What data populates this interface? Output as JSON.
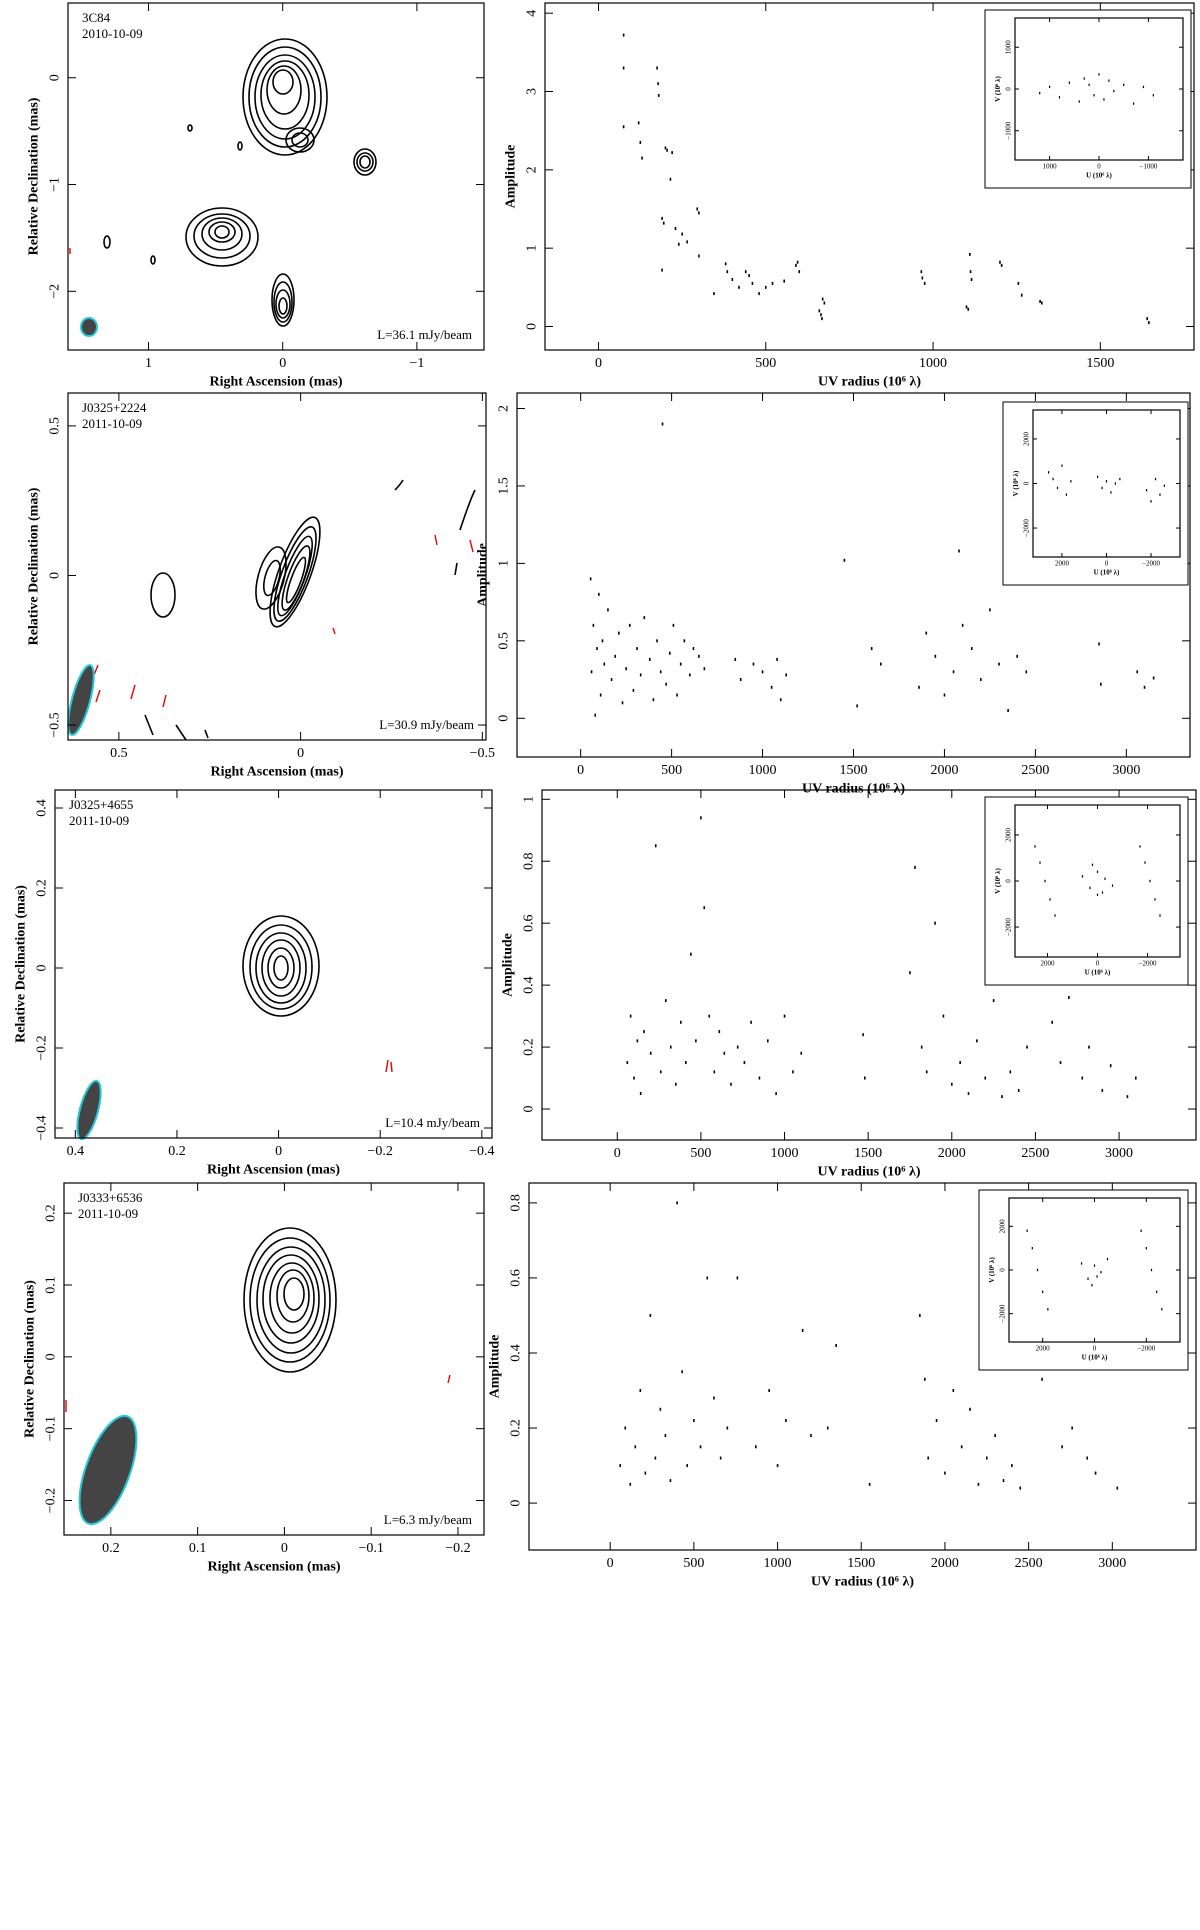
{
  "chart_data": [
    {
      "type": "contour",
      "title": "3C84",
      "subtitle": "2010-10-09",
      "annotation": "L=36.1 mJy/beam",
      "xlabel": "Right Ascension (mas)",
      "ylabel": "Relative Declination (mas)",
      "xlim": [
        1.6,
        -1.5
      ],
      "ylim": [
        -2.55,
        0.7
      ],
      "xticks": [
        1,
        0,
        {
          "value": -1,
          "label": "−1"
        }
      ],
      "yticks": [
        0,
        {
          "value": -1,
          "label": "−1"
        },
        {
          "value": -2,
          "label": "−2"
        }
      ]
    },
    {
      "type": "scatter",
      "xlabel": "UV radius (10⁶ λ)",
      "ylabel": "Amplitude",
      "xlim": [
        -160,
        1780
      ],
      "ylim": [
        -0.3,
        4.13
      ],
      "xticks": [
        0,
        500,
        1000,
        1500
      ],
      "yticks": [
        0,
        1,
        2,
        3,
        4
      ],
      "x": [
        75,
        75,
        75,
        120,
        125,
        130,
        175,
        178,
        180,
        200,
        205,
        220,
        215,
        190,
        195,
        190,
        230,
        240,
        250,
        265,
        295,
        300,
        300,
        345,
        380,
        385,
        400,
        420,
        440,
        450,
        460,
        480,
        500,
        520,
        555,
        590,
        595,
        600,
        660,
        665,
        668,
        670,
        675,
        965,
        968,
        975,
        1100,
        1105,
        1110,
        1112,
        1115,
        1200,
        1205,
        1255,
        1265,
        1320,
        1325,
        1640,
        1645
      ],
      "y": [
        3.72,
        3.3,
        2.55,
        2.6,
        2.35,
        2.15,
        3.3,
        3.1,
        2.95,
        2.28,
        2.25,
        2.22,
        1.88,
        1.38,
        1.32,
        0.72,
        1.25,
        1.05,
        1.18,
        1.08,
        1.5,
        1.45,
        0.9,
        0.42,
        0.8,
        0.7,
        0.6,
        0.5,
        0.7,
        0.65,
        0.55,
        0.42,
        0.5,
        0.55,
        0.58,
        0.78,
        0.82,
        0.7,
        0.2,
        0.15,
        0.1,
        0.35,
        0.3,
        0.7,
        0.62,
        0.55,
        0.25,
        0.22,
        0.92,
        0.7,
        0.6,
        0.82,
        0.78,
        0.55,
        0.4,
        0.32,
        0.3,
        0.1,
        0.05
      ],
      "inset": {
        "xlabel": "U (10⁶ λ)",
        "ylabel": "V (10⁶ λ)",
        "xlim": [
          1700,
          -1700
        ],
        "ylim": [
          -1700,
          1700
        ],
        "xticks": [
          1000,
          0,
          {
            "value": -1000,
            "label": "−1000"
          }
        ],
        "yticks": [
          1000,
          0,
          {
            "value": -1000,
            "label": "−1000"
          }
        ],
        "x": [
          1200,
          1000,
          800,
          600,
          400,
          300,
          200,
          100,
          0,
          -100,
          -200,
          -300,
          -500,
          -700,
          -900,
          -1100
        ],
        "y": [
          -100,
          50,
          -200,
          150,
          -300,
          250,
          100,
          -150,
          350,
          -250,
          200,
          -50,
          100,
          -350,
          50,
          -150
        ]
      }
    },
    {
      "type": "contour",
      "title": "J0325+2224",
      "subtitle": "2011-10-09",
      "annotation": "L=30.9 mJy/beam",
      "xlabel": "Right Ascension (mas)",
      "ylabel": "Relative Declination (mas)",
      "xlim": [
        0.64,
        -0.51
      ],
      "ylim": [
        -0.55,
        0.61
      ],
      "xticks": [
        0.5,
        0,
        {
          "value": -0.5,
          "label": "−0.5"
        }
      ],
      "yticks": [
        0.5,
        0,
        {
          "value": -0.5,
          "label": "−0.5"
        }
      ]
    },
    {
      "type": "scatter",
      "xlabel": "UV radius (10⁶ λ)",
      "ylabel": "Amplitude",
      "xlim": [
        -350,
        3350
      ],
      "ylim": [
        -0.25,
        2.1
      ],
      "xticks": [
        0,
        500,
        1000,
        1500,
        2000,
        2500,
        3000
      ],
      "yticks": [
        0,
        0.5,
        1,
        1.5,
        2
      ],
      "x": [
        55,
        60,
        70,
        80,
        90,
        100,
        110,
        120,
        130,
        150,
        170,
        190,
        210,
        230,
        250,
        270,
        290,
        310,
        330,
        350,
        380,
        400,
        420,
        440,
        450,
        470,
        490,
        510,
        530,
        550,
        570,
        600,
        620,
        650,
        680,
        850,
        880,
        950,
        1000,
        1050,
        1080,
        1100,
        1130,
        1450,
        1520,
        1600,
        1650,
        1860,
        1900,
        1950,
        2000,
        2050,
        2080,
        2100,
        2150,
        2200,
        2250,
        2300,
        2350,
        2400,
        2450,
        2850,
        2860,
        3060,
        3100,
        3150
      ],
      "y": [
        0.9,
        0.3,
        0.6,
        0.02,
        0.45,
        0.8,
        0.15,
        0.5,
        0.35,
        0.7,
        0.25,
        0.4,
        0.55,
        0.1,
        0.32,
        0.6,
        0.18,
        0.45,
        0.28,
        0.65,
        0.38,
        0.12,
        0.5,
        0.3,
        1.9,
        0.22,
        0.42,
        0.6,
        0.15,
        0.35,
        0.5,
        0.28,
        0.45,
        0.4,
        0.32,
        0.38,
        0.25,
        0.35,
        0.3,
        0.2,
        0.38,
        0.12,
        0.28,
        1.02,
        0.08,
        0.45,
        0.35,
        0.2,
        0.55,
        0.4,
        0.15,
        0.3,
        1.08,
        0.6,
        0.45,
        0.25,
        0.7,
        0.35,
        0.05,
        0.4,
        0.3,
        0.48,
        0.22,
        0.3,
        0.2,
        0.26
      ],
      "inset": {
        "xlabel": "U (10⁶ λ)",
        "ylabel": "V (10⁶ λ)",
        "xlim": [
          3300,
          -3300
        ],
        "ylim": [
          -3300,
          3300
        ],
        "xticks": [
          2000,
          0,
          {
            "value": -2000,
            "label": "−2000"
          }
        ],
        "yticks": [
          2000,
          0,
          {
            "value": -2000,
            "label": "−2000"
          }
        ],
        "x": [
          2600,
          2400,
          2200,
          2000,
          1800,
          1600,
          400,
          200,
          0,
          -200,
          -400,
          -600,
          -1800,
          -2000,
          -2200,
          -2400,
          -2600
        ],
        "y": [
          500,
          200,
          -200,
          800,
          -500,
          100,
          300,
          -200,
          100,
          -400,
          0,
          200,
          -300,
          -800,
          200,
          -500,
          -100
        ]
      }
    },
    {
      "type": "contour",
      "title": "J0325+4655",
      "subtitle": "2011-10-09",
      "annotation": "L=10.4 mJy/beam",
      "xlabel": "Right Ascension (mas)",
      "ylabel": "Relative Declination (mas)",
      "xlim": [
        0.44,
        -0.42
      ],
      "ylim": [
        -0.425,
        0.445
      ],
      "xticks": [
        0.4,
        0.2,
        0,
        {
          "value": -0.2,
          "label": "−0.2"
        },
        {
          "value": -0.4,
          "label": "−0.4"
        }
      ],
      "yticks": [
        0.4,
        0.2,
        0,
        {
          "value": -0.2,
          "label": "−0.2"
        },
        {
          "value": -0.4,
          "label": "−0.4"
        }
      ]
    },
    {
      "type": "scatter",
      "xlabel": "UV radius (10⁶ λ)",
      "ylabel": "Amplitude",
      "xlim": [
        -450,
        3460
      ],
      "ylim": [
        -0.1,
        1.03
      ],
      "xticks": [
        0,
        500,
        1000,
        1500,
        2000,
        2500,
        3000
      ],
      "yticks": [
        0,
        0.2,
        0.4,
        0.6,
        0.8,
        1
      ],
      "x": [
        60,
        80,
        100,
        120,
        140,
        160,
        200,
        230,
        260,
        290,
        320,
        350,
        380,
        410,
        440,
        470,
        500,
        520,
        550,
        580,
        610,
        640,
        680,
        720,
        760,
        800,
        850,
        900,
        950,
        1000,
        1050,
        1100,
        1470,
        1480,
        1750,
        1780,
        1820,
        1850,
        1900,
        1950,
        2000,
        2050,
        2100,
        2150,
        2200,
        2250,
        2300,
        2350,
        2400,
        2450,
        2600,
        2650,
        2700,
        2780,
        2820,
        2900,
        2950,
        3050,
        3100
      ],
      "y": [
        0.15,
        0.3,
        0.1,
        0.22,
        0.05,
        0.25,
        0.18,
        0.85,
        0.12,
        0.35,
        0.2,
        0.08,
        0.28,
        0.15,
        0.5,
        0.22,
        0.94,
        0.65,
        0.3,
        0.12,
        0.25,
        0.18,
        0.08,
        0.2,
        0.15,
        0.28,
        0.1,
        0.22,
        0.05,
        0.3,
        0.12,
        0.18,
        0.24,
        0.1,
        0.44,
        0.78,
        0.2,
        0.12,
        0.6,
        0.3,
        0.08,
        0.15,
        0.05,
        0.22,
        0.1,
        0.35,
        0.04,
        0.12,
        0.06,
        0.2,
        0.28,
        0.15,
        0.36,
        0.1,
        0.2,
        0.06,
        0.14,
        0.04,
        0.1
      ],
      "inset": {
        "xlabel": "U (10⁶ λ)",
        "ylabel": "V (10⁶ λ)",
        "xlim": [
          3300,
          -3300
        ],
        "ylim": [
          -3300,
          3300
        ],
        "xticks": [
          2000,
          0,
          {
            "value": -2000,
            "label": "−2000"
          }
        ],
        "yticks": [
          2000,
          0,
          {
            "value": -2000,
            "label": "−2000"
          }
        ],
        "x": [
          2500,
          2300,
          2100,
          1900,
          1700,
          600,
          300,
          0,
          -300,
          -600,
          0,
          200,
          -200,
          -1700,
          -1900,
          -2100,
          -2300,
          -2500
        ],
        "y": [
          1500,
          800,
          0,
          -800,
          -1500,
          200,
          -300,
          400,
          100,
          -200,
          -600,
          700,
          -500,
          1500,
          800,
          0,
          -800,
          -1500
        ]
      }
    },
    {
      "type": "contour",
      "title": "J0333+6536",
      "subtitle": "2011-10-09",
      "annotation": "L=6.3 mJy/beam",
      "xlabel": "Right Ascension (mas)",
      "ylabel": "Relative Declination (mas)",
      "xlim": [
        0.254,
        -0.23
      ],
      "ylim": [
        -0.248,
        0.242
      ],
      "xticks": [
        0.2,
        0.1,
        0,
        {
          "value": -0.1,
          "label": "−0.1"
        },
        {
          "value": -0.2,
          "label": "−0.2"
        }
      ],
      "yticks": [
        0.2,
        0.1,
        0,
        {
          "value": -0.1,
          "label": "−0.1"
        },
        {
          "value": -0.2,
          "label": "−0.2"
        }
      ]
    },
    {
      "type": "scatter",
      "xlabel": "UV radius (10⁶ λ)",
      "ylabel": "Amplitude",
      "xlim": [
        -485,
        3500
      ],
      "ylim": [
        -0.125,
        0.853
      ],
      "xticks": [
        0,
        500,
        1000,
        1500,
        2000,
        2500,
        3000
      ],
      "yticks": [
        0,
        0.2,
        0.4,
        0.6,
        0.8
      ],
      "x": [
        60,
        90,
        120,
        150,
        180,
        210,
        240,
        270,
        300,
        330,
        360,
        400,
        430,
        460,
        500,
        540,
        580,
        620,
        660,
        700,
        760,
        870,
        950,
        1000,
        1050,
        1150,
        1200,
        1300,
        1350,
        1550,
        1850,
        1880,
        1900,
        1950,
        2000,
        2050,
        2100,
        2150,
        2200,
        2250,
        2300,
        2350,
        2400,
        2450,
        2580,
        2600,
        2700,
        2760,
        2850,
        2900,
        3030
      ],
      "y": [
        0.1,
        0.2,
        0.05,
        0.15,
        0.3,
        0.08,
        0.5,
        0.12,
        0.25,
        0.18,
        0.06,
        0.8,
        0.35,
        0.1,
        0.22,
        0.15,
        0.6,
        0.28,
        0.12,
        0.2,
        0.6,
        0.15,
        0.3,
        0.1,
        0.22,
        0.46,
        0.18,
        0.2,
        0.42,
        0.05,
        0.5,
        0.33,
        0.12,
        0.22,
        0.08,
        0.3,
        0.15,
        0.25,
        0.05,
        0.12,
        0.18,
        0.06,
        0.1,
        0.04,
        0.33,
        0.38,
        0.15,
        0.2,
        0.12,
        0.08,
        0.04
      ],
      "inset": {
        "xlabel": "U (10⁶ λ)",
        "ylabel": "V (10⁶ λ)",
        "xlim": [
          3300,
          -3300
        ],
        "ylim": [
          -3300,
          3300
        ],
        "xticks": [
          2000,
          0,
          {
            "value": -2000,
            "label": "−2000"
          }
        ],
        "yticks": [
          2000,
          0,
          {
            "value": -2000,
            "label": "−2000"
          }
        ],
        "x": [
          2600,
          2400,
          2200,
          2000,
          1800,
          500,
          250,
          0,
          -250,
          -500,
          100,
          -100,
          -1800,
          -2000,
          -2200,
          -2400,
          -2600
        ],
        "y": [
          1800,
          1000,
          0,
          -1000,
          -1800,
          300,
          -400,
          200,
          -100,
          500,
          -700,
          -300,
          1800,
          1000,
          0,
          -1000,
          -1800
        ]
      }
    }
  ]
}
